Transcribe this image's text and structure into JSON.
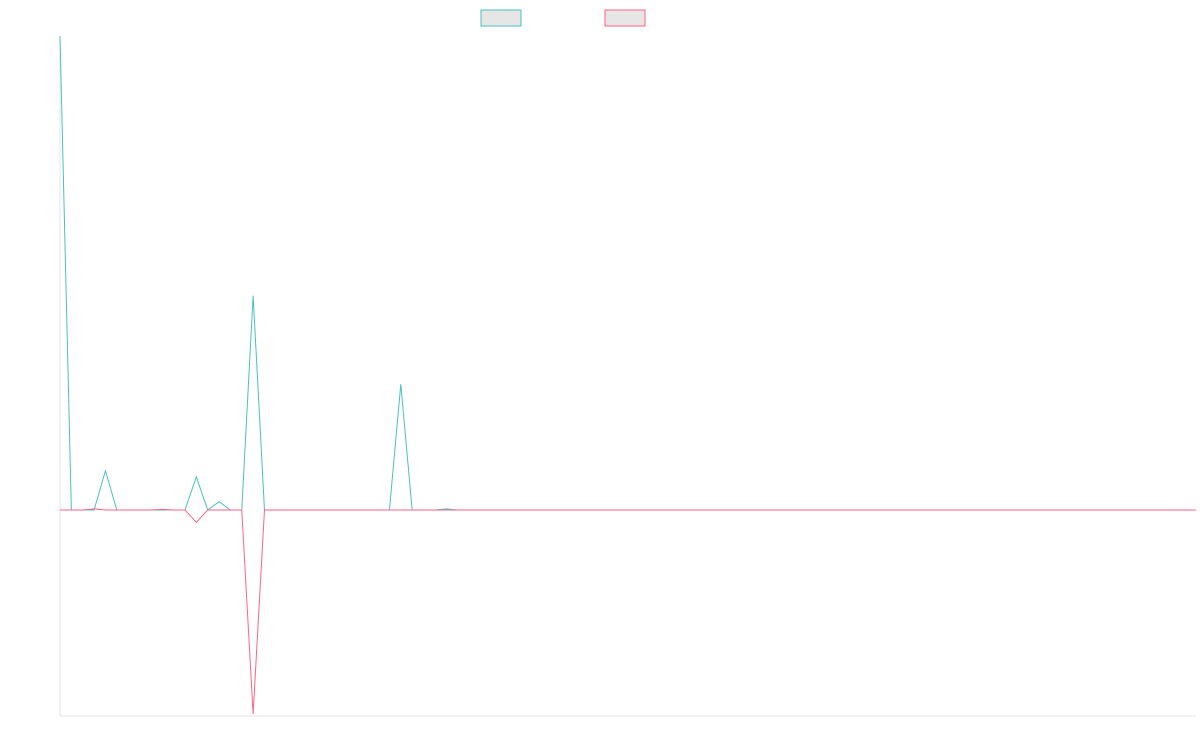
{
  "chart_data": {
    "type": "line",
    "title": "",
    "xlabel": "",
    "ylabel": "",
    "grid": false,
    "legend": "top-center",
    "x_count": 101,
    "ylim": [
      -100,
      230
    ],
    "series": [
      {
        "color": "#4bc0c0",
        "legend_fill": "#e6e6e6",
        "points": [
          [
            0,
            230
          ],
          [
            1,
            0
          ],
          [
            2,
            0
          ],
          [
            3,
            0
          ],
          [
            4,
            19
          ],
          [
            5,
            0
          ],
          [
            6,
            0
          ],
          [
            7,
            0
          ],
          [
            8,
            0
          ],
          [
            9,
            0
          ],
          [
            10,
            0
          ],
          [
            11,
            0
          ],
          [
            12,
            16
          ],
          [
            13,
            0
          ],
          [
            14,
            4
          ],
          [
            15,
            0
          ],
          [
            16,
            0
          ],
          [
            17,
            104
          ],
          [
            18,
            0
          ],
          [
            19,
            0
          ],
          [
            20,
            0
          ],
          [
            21,
            0
          ],
          [
            22,
            0
          ],
          [
            23,
            0
          ],
          [
            24,
            0
          ],
          [
            25,
            0
          ],
          [
            26,
            0
          ],
          [
            27,
            0
          ],
          [
            28,
            0
          ],
          [
            29,
            0
          ],
          [
            30,
            61
          ],
          [
            31,
            0
          ],
          [
            32,
            0
          ],
          [
            33,
            0
          ],
          [
            34,
            0.5
          ],
          [
            35,
            0
          ],
          [
            36,
            0
          ],
          [
            37,
            0
          ],
          [
            38,
            0
          ],
          [
            39,
            0
          ],
          [
            40,
            0
          ],
          [
            41,
            0
          ],
          [
            42,
            0
          ],
          [
            43,
            0
          ],
          [
            44,
            0
          ],
          [
            45,
            0
          ],
          [
            46,
            0
          ],
          [
            47,
            0
          ],
          [
            48,
            0
          ],
          [
            49,
            0
          ],
          [
            50,
            0
          ],
          [
            51,
            0
          ],
          [
            52,
            0
          ],
          [
            53,
            0
          ],
          [
            54,
            0
          ],
          [
            55,
            0
          ],
          [
            56,
            0
          ],
          [
            57,
            0
          ],
          [
            58,
            0
          ],
          [
            59,
            0
          ],
          [
            60,
            0
          ],
          [
            61,
            0
          ],
          [
            62,
            0
          ],
          [
            63,
            0
          ],
          [
            64,
            0
          ],
          [
            65,
            0
          ],
          [
            66,
            0
          ],
          [
            67,
            0
          ],
          [
            68,
            0
          ],
          [
            69,
            0
          ],
          [
            70,
            0
          ],
          [
            71,
            0
          ],
          [
            72,
            0
          ],
          [
            73,
            0
          ],
          [
            74,
            0
          ],
          [
            75,
            0
          ],
          [
            76,
            0
          ],
          [
            77,
            0
          ],
          [
            78,
            0
          ],
          [
            79,
            0
          ],
          [
            80,
            0
          ],
          [
            81,
            0
          ],
          [
            82,
            0
          ],
          [
            83,
            0
          ],
          [
            84,
            0
          ],
          [
            85,
            0
          ],
          [
            86,
            0
          ],
          [
            87,
            0
          ],
          [
            88,
            0
          ],
          [
            89,
            0
          ],
          [
            90,
            0
          ],
          [
            91,
            0
          ],
          [
            92,
            0
          ],
          [
            93,
            0
          ],
          [
            94,
            0
          ],
          [
            95,
            0
          ],
          [
            96,
            0
          ],
          [
            97,
            0
          ],
          [
            98,
            0
          ],
          [
            99,
            0
          ],
          [
            100,
            0
          ]
        ]
      },
      {
        "color": "#ff6384",
        "legend_fill": "#e6e6e6",
        "points": [
          [
            0,
            0
          ],
          [
            1,
            0
          ],
          [
            2,
            0
          ],
          [
            3,
            0.5
          ],
          [
            4,
            0
          ],
          [
            5,
            0
          ],
          [
            6,
            0
          ],
          [
            7,
            0
          ],
          [
            8,
            0
          ],
          [
            9,
            0.3
          ],
          [
            10,
            0
          ],
          [
            11,
            0
          ],
          [
            12,
            -6
          ],
          [
            13,
            0
          ],
          [
            14,
            0
          ],
          [
            15,
            0
          ],
          [
            16,
            0
          ],
          [
            17,
            -99
          ],
          [
            18,
            0
          ],
          [
            19,
            0
          ],
          [
            20,
            0
          ],
          [
            21,
            0
          ],
          [
            22,
            0
          ],
          [
            23,
            0
          ],
          [
            24,
            0
          ],
          [
            25,
            0
          ],
          [
            26,
            0
          ],
          [
            27,
            0
          ],
          [
            28,
            0
          ],
          [
            29,
            0
          ],
          [
            30,
            0
          ],
          [
            31,
            0
          ],
          [
            32,
            0
          ],
          [
            33,
            0
          ],
          [
            34,
            0
          ],
          [
            35,
            0
          ],
          [
            36,
            0
          ],
          [
            37,
            0
          ],
          [
            38,
            0
          ],
          [
            39,
            0
          ],
          [
            40,
            0
          ],
          [
            41,
            0
          ],
          [
            42,
            0
          ],
          [
            43,
            0
          ],
          [
            44,
            0
          ],
          [
            45,
            0
          ],
          [
            46,
            0
          ],
          [
            47,
            0
          ],
          [
            48,
            0
          ],
          [
            49,
            0
          ],
          [
            50,
            0
          ],
          [
            51,
            0
          ],
          [
            52,
            0
          ],
          [
            53,
            0
          ],
          [
            54,
            0
          ],
          [
            55,
            0
          ],
          [
            56,
            0
          ],
          [
            57,
            0
          ],
          [
            58,
            0
          ],
          [
            59,
            0
          ],
          [
            60,
            0
          ],
          [
            61,
            0
          ],
          [
            62,
            0
          ],
          [
            63,
            0
          ],
          [
            64,
            0
          ],
          [
            65,
            0
          ],
          [
            66,
            0
          ],
          [
            67,
            0
          ],
          [
            68,
            0
          ],
          [
            69,
            0
          ],
          [
            70,
            0
          ],
          [
            71,
            0
          ],
          [
            72,
            0
          ],
          [
            73,
            0
          ],
          [
            74,
            0
          ],
          [
            75,
            0
          ],
          [
            76,
            0
          ],
          [
            77,
            0
          ],
          [
            78,
            0
          ],
          [
            79,
            0
          ],
          [
            80,
            0
          ],
          [
            81,
            0
          ],
          [
            82,
            0
          ],
          [
            83,
            0
          ],
          [
            84,
            0
          ],
          [
            85,
            0
          ],
          [
            86,
            0
          ],
          [
            87,
            0
          ],
          [
            88,
            0
          ],
          [
            89,
            0
          ],
          [
            90,
            0
          ],
          [
            91,
            0
          ],
          [
            92,
            0
          ],
          [
            93,
            0
          ],
          [
            94,
            0
          ],
          [
            95,
            0
          ],
          [
            96,
            0
          ],
          [
            97,
            0
          ],
          [
            98,
            0
          ],
          [
            99,
            0
          ],
          [
            100,
            0
          ]
        ]
      }
    ]
  }
}
